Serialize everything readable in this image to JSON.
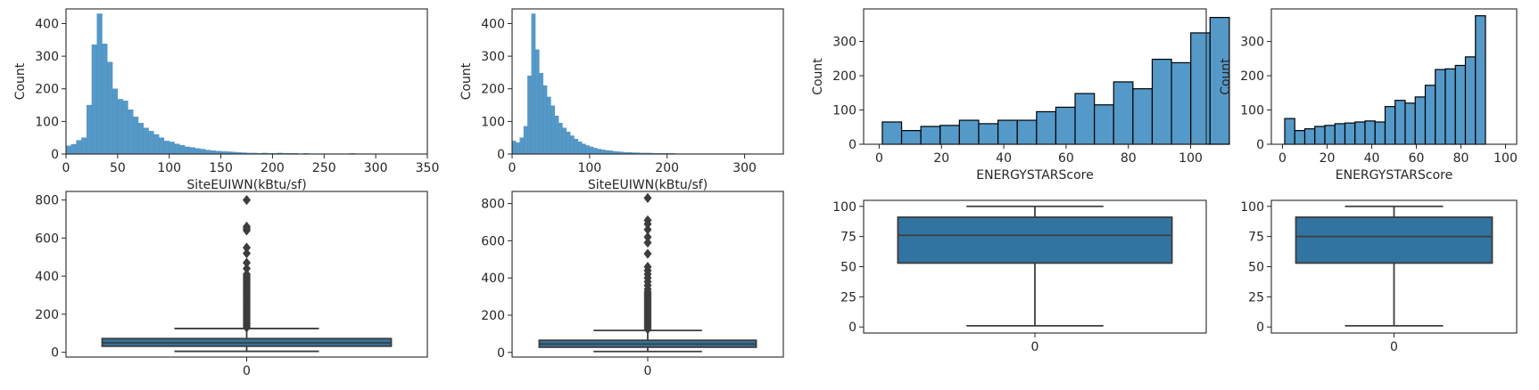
{
  "colors": {
    "bar": "#5599c8",
    "box": "#3274a1",
    "line": "#3d3d3d"
  },
  "chart_data": [
    {
      "type": "bar",
      "subtype": "histogram",
      "xlabel": "SiteEUIWN(kBtu/sf)",
      "ylabel": "Count",
      "xlim": [
        0,
        350
      ],
      "ylim": [
        0,
        445
      ],
      "xticks": [
        0,
        50,
        100,
        150,
        200,
        250,
        300,
        350
      ],
      "yticks": [
        0,
        100,
        200,
        300,
        400
      ],
      "bar_edges": "none",
      "bin_start": 0,
      "bin_width": 5,
      "values": [
        25,
        30,
        42,
        50,
        150,
        335,
        430,
        338,
        282,
        200,
        168,
        163,
        136,
        114,
        95,
        80,
        70,
        60,
        50,
        40,
        37,
        31,
        27,
        22,
        20,
        17,
        15,
        12,
        10,
        9,
        8,
        7,
        6,
        5,
        4,
        3,
        3,
        2,
        3,
        2,
        2,
        3,
        2,
        2,
        2,
        1,
        2,
        1,
        1,
        1,
        1,
        1,
        1,
        1,
        1,
        2,
        1,
        1,
        1,
        1
      ]
    },
    {
      "type": "bar",
      "subtype": "histogram",
      "xlabel": "SiteEUIWN(kBtu/sf)",
      "ylabel": "Count",
      "xlim": [
        0,
        350
      ],
      "ylim": [
        0,
        445
      ],
      "xticks": [
        0,
        100,
        200,
        300
      ],
      "yticks": [
        0,
        100,
        200,
        300,
        400
      ],
      "bar_edges": "none",
      "bin_start": 0,
      "bin_width": 5,
      "values": [
        40,
        35,
        50,
        85,
        240,
        430,
        320,
        248,
        210,
        175,
        148,
        117,
        95,
        80,
        68,
        56,
        46,
        38,
        31,
        26,
        22,
        18,
        15,
        13,
        11,
        10,
        8,
        7,
        6,
        5,
        5,
        4,
        4,
        3,
        3,
        3,
        2,
        2,
        2,
        2,
        2,
        2,
        1,
        1,
        1,
        1,
        1,
        1,
        1,
        1,
        1,
        1,
        1,
        1,
        1,
        1,
        1,
        1,
        1,
        1,
        1
      ]
    },
    {
      "type": "bar",
      "subtype": "histogram",
      "xlabel": "ENERGYSTARScore",
      "ylabel": "Count",
      "xlim": [
        -5,
        105
      ],
      "ylim": [
        0,
        395
      ],
      "xticks": [
        0,
        20,
        40,
        60,
        80,
        100
      ],
      "yticks": [
        0,
        100,
        200,
        300
      ],
      "bar_edges": "black",
      "bin_start": 1,
      "bin_width": 6.19,
      "values": [
        65,
        40,
        52,
        55,
        70,
        60,
        70,
        70,
        95,
        108,
        148,
        115,
        182,
        162,
        248,
        238,
        325,
        370
      ]
    },
    {
      "type": "bar",
      "subtype": "histogram",
      "xlabel": "ENERGYSTARScore",
      "ylabel": "Count",
      "xlim": [
        -5,
        105
      ],
      "ylim": [
        0,
        395
      ],
      "xticks": [
        0,
        20,
        40,
        60,
        80,
        100
      ],
      "yticks": [
        0,
        100,
        200,
        300
      ],
      "bar_edges": "black",
      "bin_start": 1,
      "bin_width": 4.5,
      "values": [
        75,
        40,
        45,
        52,
        55,
        60,
        62,
        65,
        68,
        65,
        110,
        128,
        120,
        138,
        172,
        218,
        220,
        230,
        255,
        375
      ]
    },
    {
      "type": "box",
      "category": "0",
      "ylim": [
        -25,
        845
      ],
      "yticks": [
        0,
        200,
        400,
        600,
        800
      ],
      "min": 5,
      "q1": 32,
      "median": 50,
      "q3": 72,
      "max": 125,
      "outliers": [
        130,
        140,
        150,
        160,
        170,
        180,
        190,
        200,
        210,
        220,
        230,
        240,
        250,
        260,
        270,
        280,
        290,
        300,
        310,
        320,
        330,
        340,
        350,
        360,
        370,
        380,
        390,
        400,
        410,
        440,
        470,
        520,
        550,
        640,
        650,
        660,
        800
      ]
    },
    {
      "type": "box",
      "category": "0",
      "ylim": [
        -25,
        865
      ],
      "yticks": [
        0,
        200,
        400,
        600,
        800
      ],
      "min": 5,
      "q1": 28,
      "median": 45,
      "q3": 65,
      "max": 118,
      "outliers": [
        125,
        135,
        145,
        155,
        165,
        175,
        185,
        195,
        205,
        215,
        225,
        235,
        245,
        255,
        265,
        275,
        285,
        295,
        305,
        315,
        325,
        340,
        360,
        380,
        400,
        420,
        440,
        460,
        530,
        590,
        620,
        660,
        690,
        710,
        830
      ]
    },
    {
      "type": "box",
      "category": "0",
      "ylim": [
        -5,
        105
      ],
      "yticks": [
        0,
        25,
        50,
        75,
        100
      ],
      "min": 1,
      "q1": 53,
      "median": 76,
      "q3": 91,
      "max": 100,
      "outliers": []
    },
    {
      "type": "box",
      "category": "0",
      "ylim": [
        -5,
        105
      ],
      "yticks": [
        0,
        25,
        50,
        75,
        100
      ],
      "min": 1,
      "q1": 53,
      "median": 75,
      "q3": 91,
      "max": 100,
      "outliers": []
    }
  ]
}
